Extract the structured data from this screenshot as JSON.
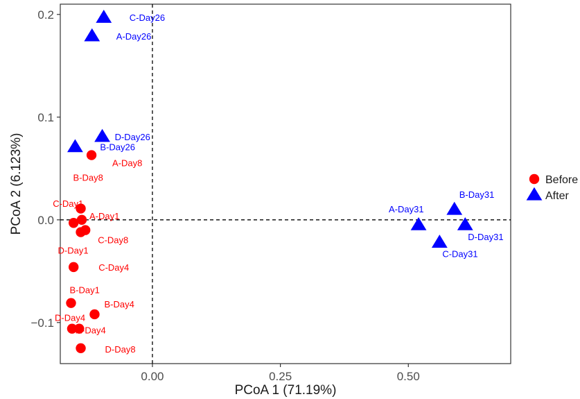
{
  "chart_data": {
    "type": "scatter",
    "xlabel": "PCoA 1 (71.19%)",
    "ylabel": "PCoA 2 (6.123%)",
    "xlim": [
      -0.18,
      0.7
    ],
    "ylim": [
      -0.14,
      0.21
    ],
    "x_ticks": [
      {
        "value": 0.0,
        "label": "0.00"
      },
      {
        "value": 0.25,
        "label": "0.25"
      },
      {
        "value": 0.5,
        "label": "0.50"
      }
    ],
    "y_ticks": [
      {
        "value": -0.1,
        "label": "-0.1"
      },
      {
        "value": 0.0,
        "label": "0.0"
      },
      {
        "value": 0.1,
        "label": "0.1"
      },
      {
        "value": 0.2,
        "label": "0.2"
      }
    ],
    "reference_lines": {
      "x": 0,
      "y": 0,
      "style": "dashed"
    },
    "grid": false,
    "legend": {
      "placement": "right"
    },
    "series": [
      {
        "name": "Before",
        "marker": "circle",
        "color": "#ff0000",
        "points": [
          {
            "label": "A-Day8",
            "x": -0.119,
            "y": 0.063
          },
          {
            "label": "B-Day8",
            "x": -0.14,
            "y": 0.011
          },
          {
            "label": "C-Day1",
            "x": -0.154,
            "y": -0.003
          },
          {
            "label": "A-Day1",
            "x": -0.138,
            "y": 0.0
          },
          {
            "label": "C-Day8",
            "x": -0.131,
            "y": -0.01
          },
          {
            "label": "D-Day1",
            "x": -0.14,
            "y": -0.012
          },
          {
            "label": "C-Day4",
            "x": -0.154,
            "y": -0.046
          },
          {
            "label": "B-Day1",
            "x": -0.159,
            "y": -0.081
          },
          {
            "label": "B-Day4",
            "x": -0.113,
            "y": -0.092
          },
          {
            "label": "D-Day4",
            "x": -0.157,
            "y": -0.106
          },
          {
            "label": "A-Day4",
            "x": -0.143,
            "y": -0.106
          },
          {
            "label": "D-Day8",
            "x": -0.14,
            "y": -0.125
          }
        ]
      },
      {
        "name": "After",
        "marker": "triangle",
        "color": "#0000ff",
        "points": [
          {
            "label": "C-Day26",
            "x": -0.095,
            "y": 0.197
          },
          {
            "label": "A-Day26",
            "x": -0.118,
            "y": 0.179
          },
          {
            "label": "D-Day26",
            "x": -0.098,
            "y": 0.081
          },
          {
            "label": "B-Day26",
            "x": -0.151,
            "y": 0.071
          },
          {
            "label": "B-Day31",
            "x": 0.59,
            "y": 0.01
          },
          {
            "label": "A-Day31",
            "x": 0.52,
            "y": -0.005
          },
          {
            "label": "D-Day31",
            "x": 0.611,
            "y": -0.005
          },
          {
            "label": "C-Day31",
            "x": 0.561,
            "y": -0.022
          }
        ]
      }
    ]
  }
}
